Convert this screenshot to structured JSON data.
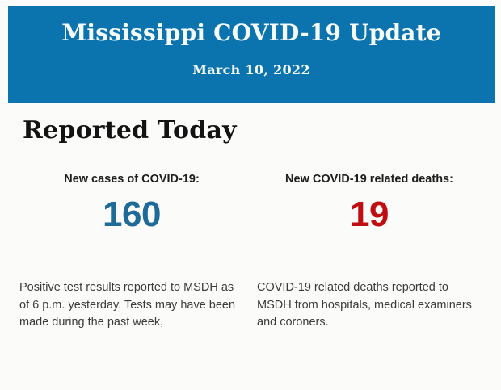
{
  "header": {
    "title": "Mississippi COVID-19 Update",
    "date": "March 10, 2022",
    "background_color": "#0B73AE",
    "text_color": "#F6FAF8"
  },
  "main": {
    "section_title": "Reported Today",
    "stats": [
      {
        "label": "New cases of COVID-19:",
        "value": "160",
        "value_color": "#1E6B99",
        "description": "Positive test results reported to MSDH as of 6 p.m. yesterday. Tests may have been made during the past week,"
      },
      {
        "label": "New COVID-19 related deaths:",
        "value": "19",
        "value_color": "#C00D11",
        "description": "COVID-19 related deaths reported to MSDH from hospitals, medical examiners and coroners."
      }
    ]
  }
}
